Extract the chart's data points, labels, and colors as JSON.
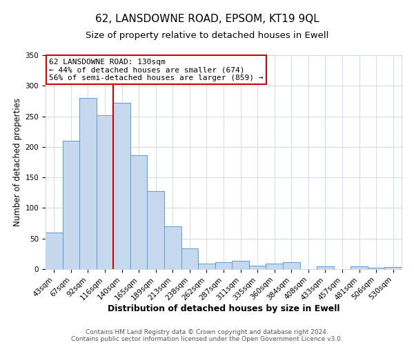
{
  "title": "62, LANSDOWNE ROAD, EPSOM, KT19 9QL",
  "subtitle": "Size of property relative to detached houses in Ewell",
  "xlabel": "Distribution of detached houses by size in Ewell",
  "ylabel": "Number of detached properties",
  "bar_labels": [
    "43sqm",
    "67sqm",
    "92sqm",
    "116sqm",
    "140sqm",
    "165sqm",
    "189sqm",
    "213sqm",
    "238sqm",
    "262sqm",
    "287sqm",
    "311sqm",
    "335sqm",
    "360sqm",
    "384sqm",
    "408sqm",
    "433sqm",
    "457sqm",
    "481sqm",
    "506sqm",
    "530sqm"
  ],
  "bar_values": [
    60,
    210,
    280,
    252,
    272,
    186,
    128,
    70,
    34,
    9,
    11,
    14,
    6,
    9,
    11,
    0,
    4,
    0,
    4,
    2,
    3
  ],
  "bar_color": "#c5d8ed",
  "bar_edge_color": "#5b9bd5",
  "vline_color": "#cc0000",
  "vline_index": 3,
  "annotation_title": "62 LANSDOWNE ROAD: 130sqm",
  "annotation_line1": "← 44% of detached houses are smaller (674)",
  "annotation_line2": "56% of semi-detached houses are larger (859) →",
  "annotation_box_color": "#ffffff",
  "annotation_box_edge": "#cc0000",
  "footer1": "Contains HM Land Registry data © Crown copyright and database right 2024.",
  "footer2": "Contains public sector information licensed under the Open Government Licence v3.0.",
  "ylim": [
    0,
    350
  ],
  "yticks": [
    0,
    50,
    100,
    150,
    200,
    250,
    300,
    350
  ],
  "title_fontsize": 11,
  "subtitle_fontsize": 9.5,
  "xlabel_fontsize": 9,
  "ylabel_fontsize": 8.5,
  "tick_fontsize": 7.5,
  "annotation_fontsize": 8,
  "footer_fontsize": 6.5,
  "background_color": "#ffffff",
  "grid_color": "#c8d8e8"
}
